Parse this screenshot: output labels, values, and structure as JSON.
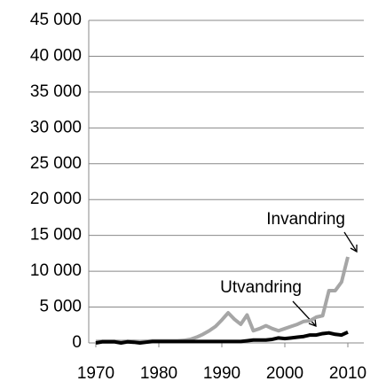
{
  "chart_data": {
    "type": "line",
    "x": [
      1970,
      1971,
      1972,
      1973,
      1974,
      1975,
      1976,
      1977,
      1978,
      1979,
      1980,
      1981,
      1982,
      1983,
      1984,
      1985,
      1986,
      1987,
      1988,
      1989,
      1990,
      1991,
      1992,
      1993,
      1994,
      1995,
      1996,
      1997,
      1998,
      1999,
      2000,
      2001,
      2002,
      2003,
      2004,
      2005,
      2006,
      2007,
      2008,
      2009,
      2010
    ],
    "series": [
      {
        "name": "Invandring",
        "color": "#a6a6a6",
        "values": [
          200,
          250,
          250,
          250,
          200,
          250,
          250,
          200,
          250,
          300,
          300,
          300,
          300,
          300,
          350,
          500,
          800,
          1200,
          1700,
          2300,
          3200,
          4200,
          3300,
          2600,
          3900,
          1700,
          2000,
          2400,
          2000,
          1700,
          2000,
          2300,
          2600,
          3000,
          3100,
          3600,
          3800,
          7300,
          7300,
          8500,
          12000
        ]
      },
      {
        "name": "Utvandring",
        "color": "#000000",
        "values": [
          0,
          150,
          150,
          150,
          0,
          150,
          100,
          0,
          100,
          200,
          200,
          200,
          200,
          200,
          200,
          200,
          200,
          200,
          200,
          200,
          200,
          200,
          200,
          200,
          300,
          400,
          400,
          400,
          500,
          700,
          600,
          700,
          800,
          900,
          1100,
          1100,
          1300,
          1400,
          1200,
          1100,
          1500
        ]
      }
    ],
    "xlim": [
      1970,
      2010
    ],
    "xticks": [
      1970,
      1980,
      1990,
      2000,
      2010
    ],
    "ylim": [
      0,
      45000
    ],
    "yticks": [
      0,
      {
        "value": 5000,
        "label": "5 000"
      },
      {
        "value": 10000,
        "label": "10 000"
      },
      {
        "value": 15000,
        "label": "15 000"
      },
      {
        "value": 20000,
        "label": "20 000"
      },
      {
        "value": 25000,
        "label": "25 000"
      },
      {
        "value": 30000,
        "label": "30 000"
      },
      {
        "value": 35000,
        "label": "35 000"
      },
      {
        "value": 40000,
        "label": "40 000"
      },
      {
        "value": 45000,
        "label": "45 000"
      }
    ],
    "grid": true
  }
}
